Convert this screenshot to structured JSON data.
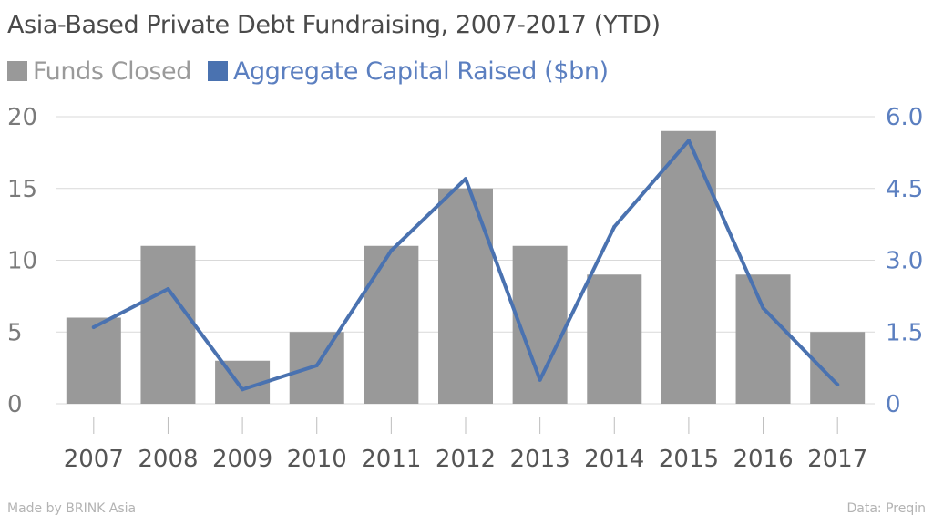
{
  "title": "Asia-Based Private Debt Fundraising, 2007-2017 (YTD)",
  "legend": {
    "funds_label": "Funds Closed",
    "capital_label": "Aggregate Capital Raised ($bn)"
  },
  "footer": {
    "left": "Made by BRINK Asia",
    "right": "Data: Preqin"
  },
  "colors": {
    "bar": "#999999",
    "line": "#4a72b0",
    "grid": "#d9d9d9",
    "left_axis_text": "#7a7a7a",
    "right_axis_text": "#5b7fc0"
  },
  "chart_data": {
    "type": "bar",
    "title": "Asia-Based Private Debt Fundraising, 2007-2017 (YTD)",
    "categories": [
      "2007",
      "2008",
      "2009",
      "2010",
      "2011",
      "2012",
      "2013",
      "2014",
      "2015",
      "2016",
      "2017"
    ],
    "series": [
      {
        "name": "Funds Closed",
        "type": "bar",
        "axis": "left",
        "values": [
          6,
          11,
          3,
          5,
          11,
          15,
          11,
          9,
          19,
          9,
          5
        ]
      },
      {
        "name": "Aggregate Capital Raised ($bn)",
        "type": "line",
        "axis": "right",
        "values": [
          1.6,
          2.4,
          0.3,
          0.8,
          3.2,
          4.7,
          0.5,
          3.7,
          5.5,
          2.0,
          0.4
        ]
      }
    ],
    "y_left": {
      "range": [
        0,
        20
      ],
      "ticks": [
        "0",
        "5",
        "10",
        "15",
        "20"
      ],
      "tick_values": [
        0,
        5,
        10,
        15,
        20
      ]
    },
    "y_right": {
      "range": [
        0,
        6
      ],
      "ticks": [
        "0",
        "1.5",
        "3.0",
        "4.5",
        "6.0"
      ],
      "tick_values": [
        0,
        1.5,
        3.0,
        4.5,
        6.0
      ]
    },
    "grid": true,
    "legend_position": "top-left"
  }
}
